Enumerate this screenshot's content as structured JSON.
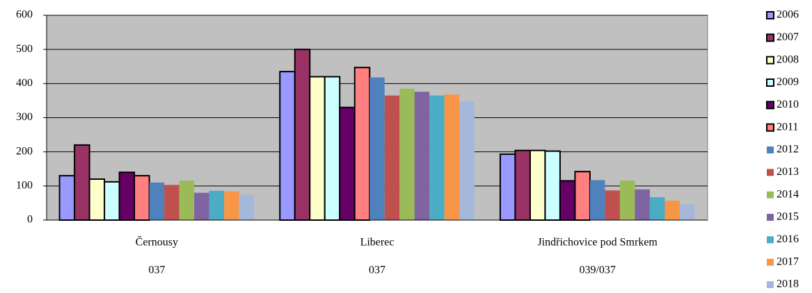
{
  "chart_data": {
    "type": "bar",
    "categories": [
      "Černousy",
      "Liberec",
      "Jindřichovice pod Smrkem"
    ],
    "category_codes": [
      "037",
      "037",
      "039/037"
    ],
    "ylim": [
      0,
      600
    ],
    "yticks": [
      0,
      100,
      200,
      300,
      400,
      500,
      600
    ],
    "grid": true,
    "legend": "right",
    "series": [
      {
        "name": "2006",
        "color": "#9999ff",
        "outline": "#000000",
        "values": [
          130,
          435,
          193
        ]
      },
      {
        "name": "2007",
        "color": "#993366",
        "outline": "#000000",
        "values": [
          220,
          500,
          204
        ]
      },
      {
        "name": "2008",
        "color": "#ffffcc",
        "outline": "#000000",
        "values": [
          120,
          420,
          204
        ]
      },
      {
        "name": "2009",
        "color": "#ccffff",
        "outline": "#000000",
        "values": [
          112,
          420,
          202
        ]
      },
      {
        "name": "2010",
        "color": "#660066",
        "outline": "#000000",
        "values": [
          140,
          330,
          115
        ]
      },
      {
        "name": "2011",
        "color": "#ff8080",
        "outline": "#000000",
        "values": [
          130,
          447,
          142
        ]
      },
      {
        "name": "2012",
        "color": "#4f81bd",
        "values": [
          110,
          418,
          117
        ]
      },
      {
        "name": "2013",
        "color": "#c0504d",
        "values": [
          103,
          365,
          87
        ]
      },
      {
        "name": "2014",
        "color": "#9bbb59",
        "values": [
          116,
          385,
          116
        ]
      },
      {
        "name": "2015",
        "color": "#8064a2",
        "values": [
          80,
          376,
          90
        ]
      },
      {
        "name": "2016",
        "color": "#4bacc6",
        "values": [
          86,
          365,
          67
        ]
      },
      {
        "name": "2017",
        "color": "#f79646",
        "values": [
          84,
          368,
          57
        ]
      },
      {
        "name": "2018",
        "color": "#a5b8db",
        "values": [
          74,
          348,
          46
        ]
      }
    ]
  }
}
